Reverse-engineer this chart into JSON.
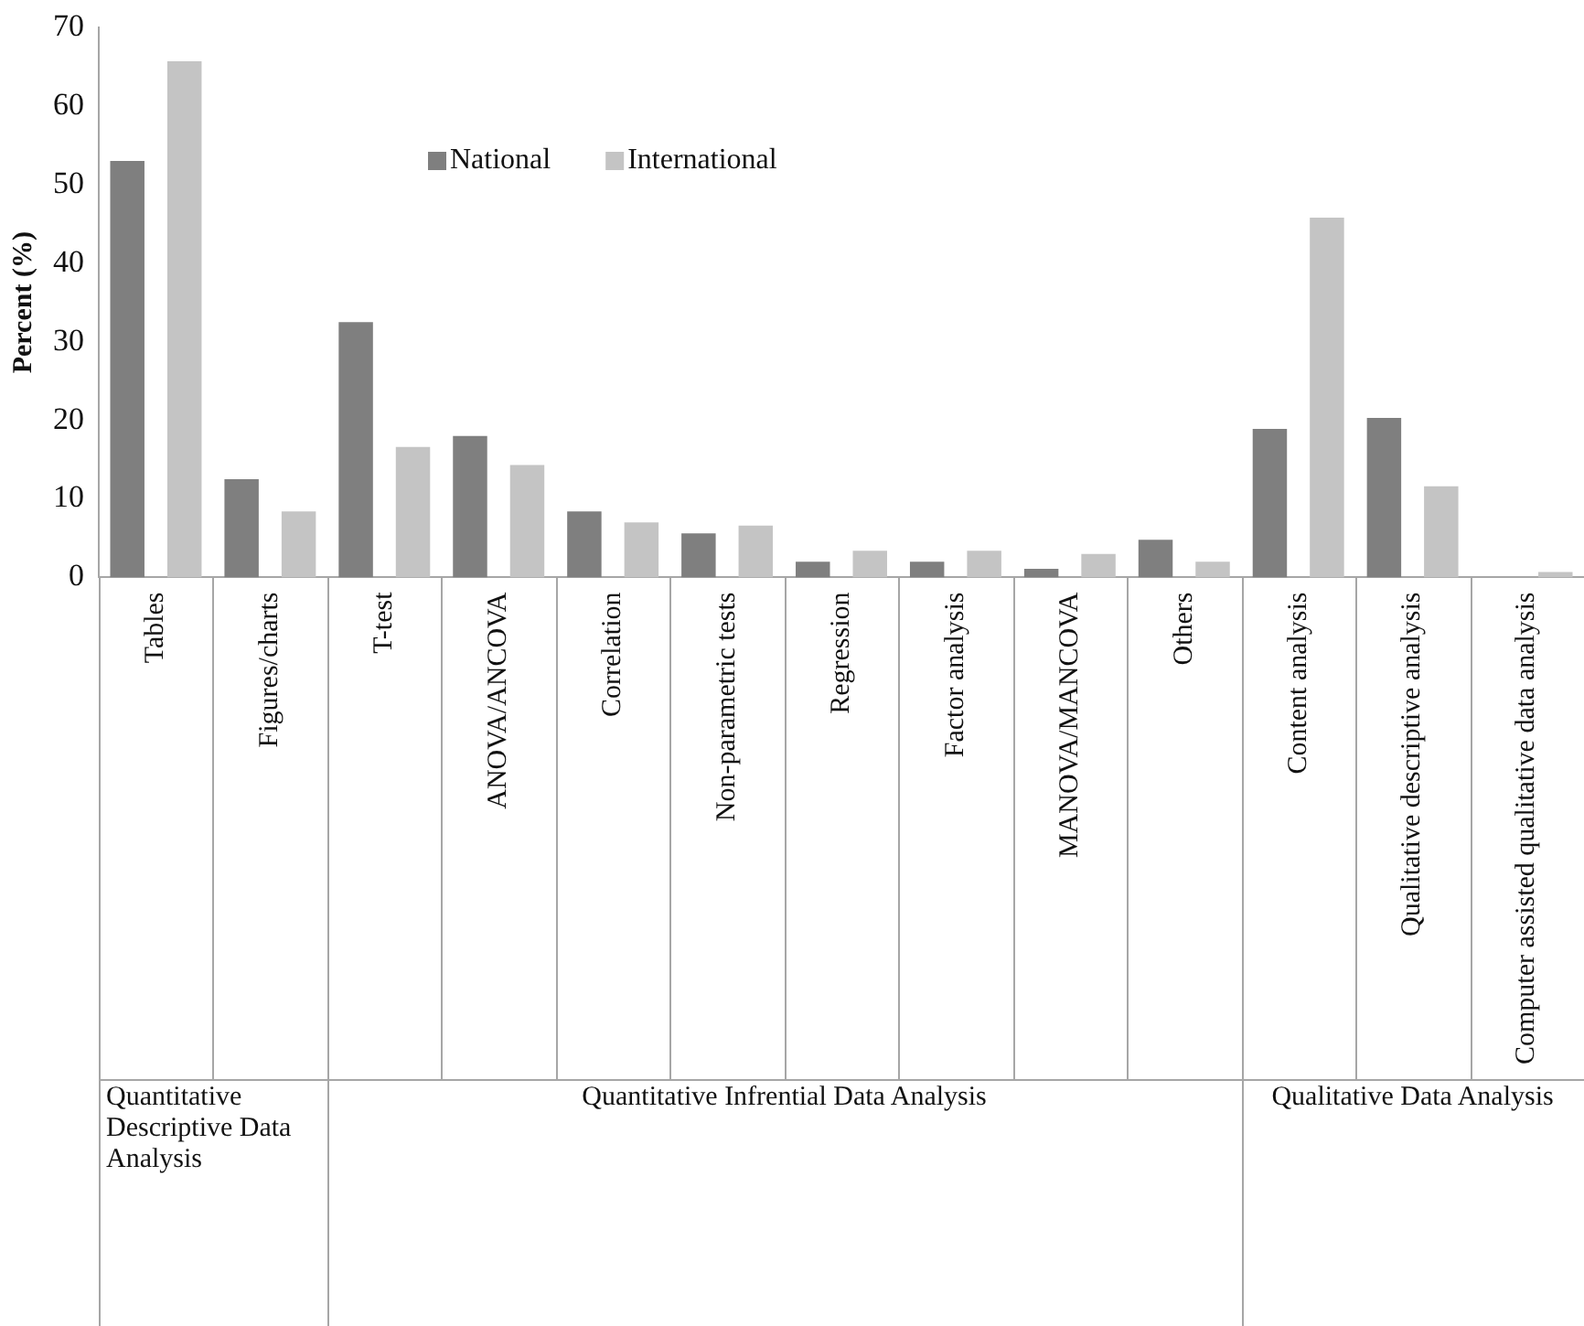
{
  "chart_data": {
    "type": "bar",
    "ylabel": "Percent (%)",
    "categories": [
      "Tables",
      "Figures/charts",
      "T-test",
      "ANOVA/ANCOVA",
      "Correlation",
      "Non-parametric tests",
      "Regression",
      "Factor analysis",
      "MANOVA/MANCOVA",
      "Others",
      "Content analysis",
      "Qualitative descriptive analysis",
      "Computer assisted qualitative data analysis"
    ],
    "series": [
      {
        "name": "National",
        "color": "#7f7f7f",
        "values": [
          53,
          12.5,
          32.5,
          18,
          8.4,
          5.6,
          2,
          2,
          1.1,
          4.8,
          18.9,
          20.3,
          null
        ]
      },
      {
        "name": "International",
        "color": "#c4c4c4",
        "values": [
          65.7,
          8.4,
          16.6,
          14.3,
          7,
          6.6,
          3.4,
          3.4,
          3,
          2,
          45.8,
          11.6,
          0.7
        ]
      }
    ],
    "ylim": [
      0,
      70
    ],
    "yticks": [
      0,
      10,
      20,
      30,
      40,
      50,
      60,
      70
    ],
    "grid": false,
    "legend": "top",
    "annotations": [
      "Quantitative Descriptive Data Analysis",
      "Quantitative Infrential Data Analysis",
      "Qualitative Data Analysis"
    ]
  }
}
